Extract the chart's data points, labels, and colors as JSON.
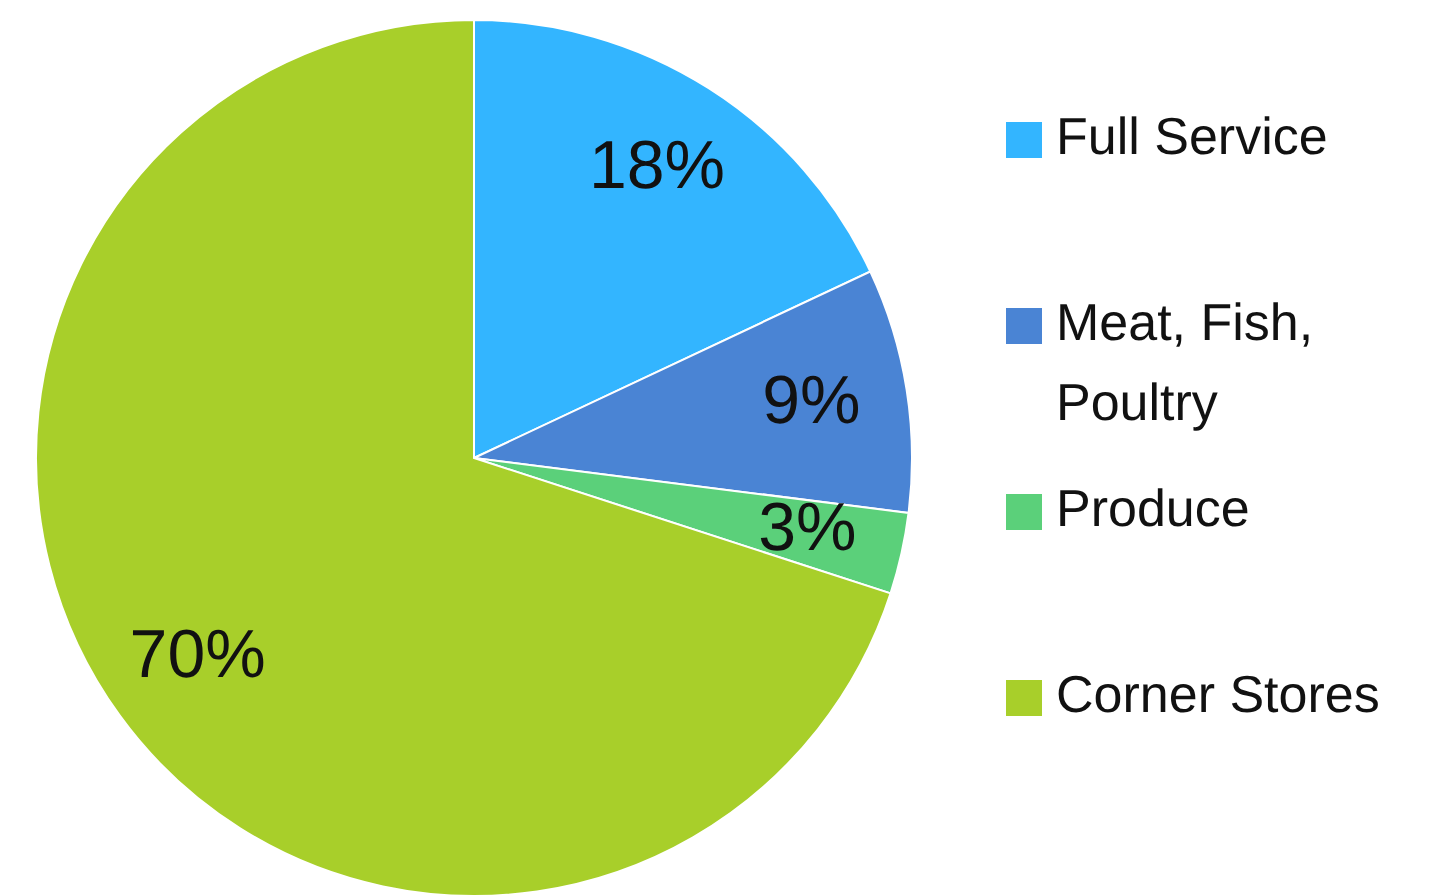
{
  "chart_data": {
    "type": "pie",
    "categories": [
      "Full Service",
      "Meat, Fish, Poultry",
      "Produce",
      "Corner Stores"
    ],
    "values": [
      18,
      9,
      3,
      70
    ],
    "colors": [
      "#33b5ff",
      "#4a84d4",
      "#5bd07a",
      "#a8cf2a"
    ],
    "value_labels": [
      "18%",
      "9%",
      "3%",
      "70%"
    ],
    "legend": "right"
  }
}
